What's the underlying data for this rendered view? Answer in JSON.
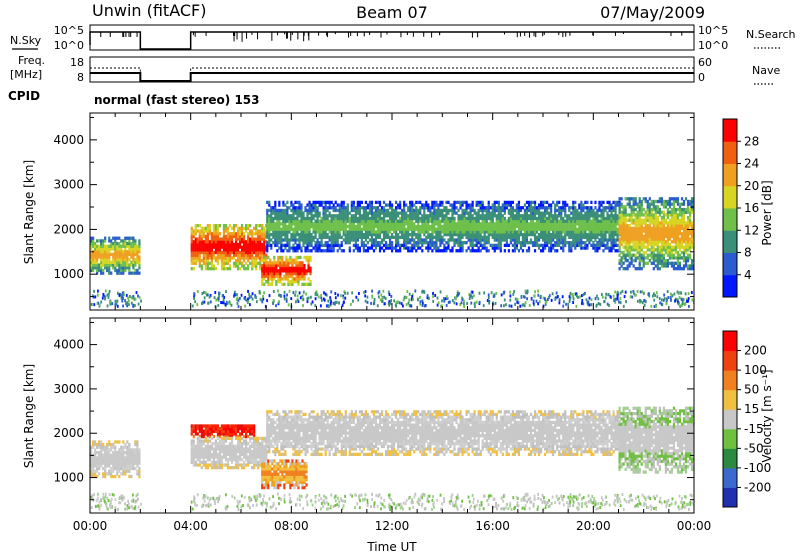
{
  "header": {
    "station": "Unwin (fitACF)",
    "beam": "Beam 07",
    "date": "07/May/2009"
  },
  "strips": {
    "nsky_label": "N.Sky",
    "nsearch_label": "N.Search",
    "freq_label_1": "Freq.",
    "freq_label_2": "[MHz]",
    "nave_label": "Nave",
    "cpid_label": "CPID",
    "cpid_text": "normal (fast stereo) 153",
    "nsky_ticks": [
      "10^5",
      "10^0"
    ],
    "nsearch_ticks": [
      "10^5",
      "10^0"
    ],
    "freq_ticks": [
      "18",
      "8"
    ],
    "nave_ticks": [
      "60",
      "0"
    ]
  },
  "chart_data": [
    {
      "type": "heatmap",
      "name": "power-panel",
      "ylabel": "Slant Range [km]",
      "xlabel": "",
      "yticks": [
        "1000",
        "2000",
        "3000",
        "4000"
      ],
      "ylim": [
        200,
        4600
      ],
      "colorbar": {
        "label": "Power [dB]",
        "ticks": [
          "4",
          "8",
          "12",
          "16",
          "20",
          "24",
          "28"
        ],
        "colors": [
          "#0018ff",
          "#2a5cd0",
          "#3a8f78",
          "#6ec04a",
          "#d7d422",
          "#f0a020",
          "#f06010",
          "#ff0000"
        ]
      },
      "regions": [
        {
          "t0": 0.0,
          "t1": 2.0,
          "r0": 1000,
          "r1": 1800,
          "level": "mid"
        },
        {
          "t0": 4.0,
          "t1": 7.0,
          "r0": 1100,
          "r1": 2100,
          "level": "high"
        },
        {
          "t0": 6.8,
          "t1": 8.8,
          "r0": 750,
          "r1": 1400,
          "level": "high"
        },
        {
          "t0": 7.0,
          "t1": 21.0,
          "r0": 1500,
          "r1": 2600,
          "level": "low"
        },
        {
          "t0": 21.0,
          "t1": 24.0,
          "r0": 1100,
          "r1": 2700,
          "level": "mid"
        }
      ]
    },
    {
      "type": "heatmap",
      "name": "velocity-panel",
      "ylabel": "Slant Range [km]",
      "xlabel": "Time UT",
      "xticks": [
        "00:00",
        "04:00",
        "08:00",
        "12:00",
        "16:00",
        "20:00",
        "00:00"
      ],
      "xlim": [
        0,
        24
      ],
      "yticks": [
        "1000",
        "2000",
        "3000",
        "4000"
      ],
      "ylim": [
        200,
        4600
      ],
      "colorbar": {
        "label": "Velocity [m s⁻¹]",
        "ticks": [
          "200",
          "100",
          "50",
          "15",
          "-15",
          "-50",
          "-100",
          "-200"
        ],
        "colors": [
          "#2030b0",
          "#3a6ad0",
          "#2a8a40",
          "#70c040",
          "#c8c8c8",
          "#f0c040",
          "#f08020",
          "#f04010",
          "#ff0000"
        ]
      },
      "regions": [
        {
          "t0": 0.0,
          "t1": 2.0,
          "r0": 1000,
          "r1": 1800,
          "v": "grey"
        },
        {
          "t0": 4.0,
          "t1": 6.5,
          "r0": 1900,
          "r1": 2200,
          "v": "red"
        },
        {
          "t0": 4.0,
          "t1": 7.0,
          "r0": 1200,
          "r1": 1900,
          "v": "grey"
        },
        {
          "t0": 6.8,
          "t1": 8.6,
          "r0": 750,
          "r1": 1400,
          "v": "orange"
        },
        {
          "t0": 7.0,
          "t1": 21.0,
          "r0": 1500,
          "r1": 2500,
          "v": "grey"
        },
        {
          "t0": 21.0,
          "t1": 24.0,
          "r0": 1100,
          "r1": 2600,
          "v": "grey-green"
        }
      ]
    }
  ]
}
